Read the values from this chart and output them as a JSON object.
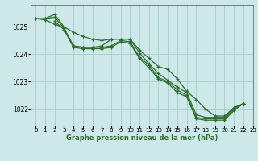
{
  "title": "Graphe pression niveau de la mer (hPa)",
  "bg_color": "#cce8e8",
  "grid_color": "#aacccc",
  "line_color": "#2d6e2d",
  "xlim": [
    -0.5,
    23
  ],
  "ylim": [
    1021.4,
    1025.8
  ],
  "yticks": [
    1022,
    1023,
    1024,
    1025
  ],
  "xticks": [
    0,
    1,
    2,
    3,
    4,
    5,
    6,
    7,
    8,
    9,
    10,
    11,
    12,
    13,
    14,
    15,
    16,
    17,
    18,
    19,
    20,
    21,
    22,
    23
  ],
  "lines": [
    {
      "x": [
        0,
        1,
        2,
        3,
        4,
        5,
        6,
        7,
        8,
        9,
        10,
        11,
        12,
        13,
        14,
        15,
        16,
        17,
        18,
        19,
        20,
        21,
        22
      ],
      "y": [
        1025.3,
        1025.3,
        1025.45,
        1025.0,
        1024.8,
        1024.65,
        1024.55,
        1024.5,
        1024.55,
        1024.55,
        1024.55,
        1024.15,
        1023.85,
        1023.55,
        1023.45,
        1023.1,
        1022.65,
        1022.35,
        1022.0,
        1021.75,
        1021.75,
        1022.05,
        1022.2
      ]
    },
    {
      "x": [
        0,
        1,
        2,
        3,
        4,
        5,
        6,
        7,
        8,
        9,
        10,
        11,
        12,
        13,
        14,
        15,
        16,
        17,
        18,
        19,
        20,
        21,
        22
      ],
      "y": [
        1025.3,
        1025.25,
        1025.1,
        1024.95,
        1024.3,
        1024.25,
        1024.25,
        1024.25,
        1024.3,
        1024.5,
        1024.45,
        1023.9,
        1023.6,
        1023.15,
        1023.0,
        1022.7,
        1022.5,
        1021.7,
        1021.65,
        1021.65,
        1021.65,
        1022.0,
        1022.2
      ]
    },
    {
      "x": [
        1,
        2,
        3,
        4,
        5,
        6,
        7,
        8,
        9,
        10,
        11,
        12,
        13,
        14,
        15,
        16,
        17,
        18,
        19,
        20,
        21,
        22
      ],
      "y": [
        1025.3,
        1025.35,
        1024.95,
        1024.3,
        1024.25,
        1024.25,
        1024.3,
        1024.55,
        1024.55,
        1024.55,
        1024.05,
        1023.65,
        1023.3,
        1023.05,
        1022.8,
        1022.6,
        1021.8,
        1021.7,
        1021.7,
        1021.7,
        1022.05,
        1022.2
      ]
    },
    {
      "x": [
        2,
        3,
        4,
        5,
        6,
        7,
        8,
        9,
        10,
        11,
        12,
        13,
        14,
        15,
        16,
        17,
        18,
        19,
        20,
        21,
        22
      ],
      "y": [
        1025.2,
        1024.9,
        1024.25,
        1024.2,
        1024.2,
        1024.2,
        1024.25,
        1024.45,
        1024.4,
        1023.85,
        1023.5,
        1023.1,
        1022.95,
        1022.6,
        1022.45,
        1021.65,
        1021.6,
        1021.6,
        1021.6,
        1021.95,
        1022.2
      ]
    }
  ]
}
